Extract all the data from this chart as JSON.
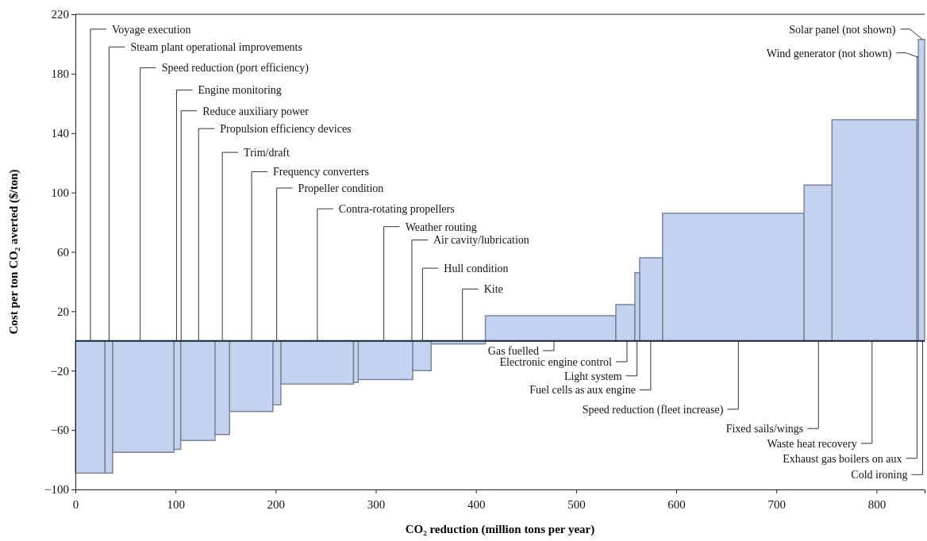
{
  "chart_data": {
    "type": "histogram",
    "xlabel": "CO₂ reduction (million tons per year)",
    "ylabel": "Cost per ton CO₂ averted ($/ton)",
    "bins": [
      0,
      29.6,
      37.1,
      98.5,
      105.1,
      139.4,
      153.9,
      197.3,
      205.2,
      277.7,
      282.4,
      336.9,
      355.3,
      409.4,
      539.7,
      558.7,
      563.4,
      586.3,
      727.7,
      755.5,
      840.4,
      841.8,
      848
    ],
    "values": [
      -89,
      -89,
      -75,
      -73,
      -67,
      -63,
      -47.5,
      -43,
      -29,
      -28,
      -26,
      -20,
      -2,
      17,
      24.5,
      46,
      56,
      86,
      105,
      149,
      191,
      203
    ],
    "color": "#c3d2ee",
    "xlim": [
      0,
      848
    ],
    "ylim": [
      -100,
      220
    ],
    "xticks": [
      0,
      100,
      200,
      300,
      400,
      500,
      600,
      700,
      800
    ],
    "yticks": [
      -100,
      -60,
      -20,
      20,
      60,
      100,
      140,
      180,
      220
    ],
    "grid": false,
    "annotations": [
      {
        "text": "Voyage execution",
        "x": 15,
        "y": 0
      },
      {
        "text": "Steam plant operational improvements",
        "x": 33.6,
        "y": 0
      },
      {
        "text": "Speed reduction (port efficiency)",
        "x": 64.7,
        "y": 0
      },
      {
        "text": "Engine monitoring",
        "x": 101,
        "y": 0
      },
      {
        "text": "Reduce auxiliary power",
        "x": 105.6,
        "y": 0
      },
      {
        "text": "Propulsion efficiency devices",
        "x": 123,
        "y": 0
      },
      {
        "text": "Trim/draft",
        "x": 146.7,
        "y": 0
      },
      {
        "text": "Frequency converters",
        "x": 176,
        "y": 0
      },
      {
        "text": "Propeller condition",
        "x": 201,
        "y": 0
      },
      {
        "text": "Contra-rotating propellers",
        "x": 241.6,
        "y": 0
      },
      {
        "text": "Weather routing",
        "x": 308,
        "y": 0
      },
      {
        "text": "Air cavity/lubrication",
        "x": 336,
        "y": 0
      },
      {
        "text": "Hull condition",
        "x": 346.6,
        "y": 0
      },
      {
        "text": "Kite",
        "x": 386.5,
        "y": 0
      },
      {
        "text": "Gas fuelled",
        "x": 477.9,
        "y": 0
      },
      {
        "text": "Electronic engine control",
        "x": 550.8,
        "y": 0
      },
      {
        "text": "Light system",
        "x": 560.8,
        "y": 0
      },
      {
        "text": "Fuel cells as aux engine",
        "x": 574.5,
        "y": 0
      },
      {
        "text": "Speed reduction (fleet increase)",
        "x": 662,
        "y": 0
      },
      {
        "text": "Fixed sails/wings",
        "x": 742,
        "y": 0
      },
      {
        "text": "Waste heat recovery",
        "x": 795.5,
        "y": 0
      },
      {
        "text": "Exhaust gas boilers on aux",
        "x": 840.4,
        "y": 0
      },
      {
        "text": "Cold ironing",
        "x": 846,
        "y": 0
      },
      {
        "text": "Solar panel (not shown)",
        "x": 846,
        "y": 203
      },
      {
        "text": "Wind generator (not shown)",
        "x": 842,
        "y": 191
      }
    ]
  }
}
